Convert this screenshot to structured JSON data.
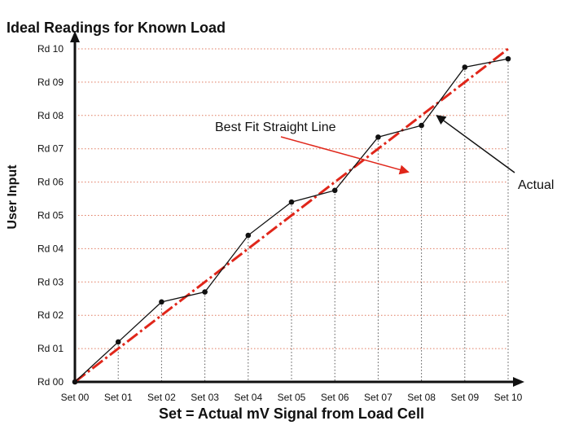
{
  "chart_data": {
    "type": "line",
    "title": "Ideal Readings for Known Load",
    "xlabel": "Set = Actual mV Signal from Load Cell",
    "ylabel": "User Input",
    "categories": [
      "Set 00",
      "Set 01",
      "Set 02",
      "Set 03",
      "Set 04",
      "Set 05",
      "Set 06",
      "Set 07",
      "Set 08",
      "Set 09",
      "Set 10"
    ],
    "y_tick_labels": [
      "Rd 00",
      "Rd 01",
      "Rd 02",
      "Rd 03",
      "Rd 04",
      "Rd 05",
      "Rd 06",
      "Rd 07",
      "Rd 08",
      "Rd 09",
      "Rd 10"
    ],
    "ylim": [
      0,
      10
    ],
    "grid": "horizontal dotted",
    "series": [
      {
        "values": [
          0,
          1,
          2,
          3,
          4,
          5,
          6,
          7,
          8,
          9,
          10
        ],
        "color": "#e0261a",
        "style": "dash-dot"
      },
      {
        "values": [
          0,
          1.2,
          2.4,
          2.7,
          4.4,
          5.4,
          5.75,
          7.35,
          7.7,
          9.45,
          9.7
        ],
        "color": "#111111",
        "style": "solid-with-markers"
      }
    ],
    "annotations": [
      {
        "text": "Best Fit Straight Line",
        "points_to": {
          "x": 7.7,
          "y": 6.3
        }
      },
      {
        "text": "Actual",
        "points_to": {
          "x": 8.35,
          "y": 8.0
        }
      }
    ]
  }
}
